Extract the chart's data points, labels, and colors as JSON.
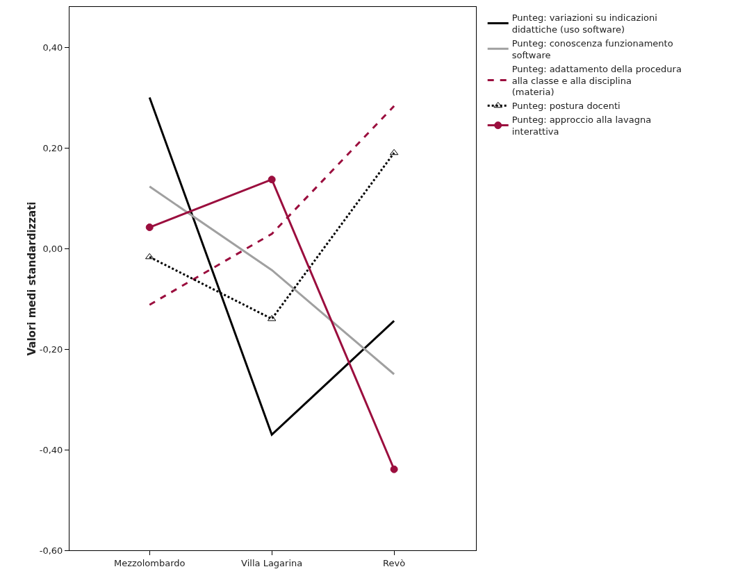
{
  "chart_data": {
    "type": "line",
    "ylabel": "Valori medi standardizzati",
    "categories": [
      "Mezzolombardo",
      "Villa Lagarina",
      "Revò"
    ],
    "ylim": [
      -0.6,
      0.48
    ],
    "yticks": [
      {
        "value": -0.6,
        "label": "-0,60"
      },
      {
        "value": -0.4,
        "label": "-0,40"
      },
      {
        "value": -0.2,
        "label": "-0,20"
      },
      {
        "value": 0,
        "label": "0,00"
      },
      {
        "value": 0.2,
        "label": "0,20"
      },
      {
        "value": 0.4,
        "label": "0,40"
      }
    ],
    "grid": false,
    "legend": "top right",
    "series": [
      {
        "name": "Punteg: variazioni su indicazioni didattiche (uso software)",
        "color": "#000000",
        "line_style": "solid",
        "marker": "none",
        "values": [
          0.3,
          -0.37,
          -0.144
        ]
      },
      {
        "name": "Punteg: conoscenza funzionamento software",
        "color": "#a0a0a0",
        "line_style": "solid",
        "marker": "none",
        "values": [
          0.123,
          -0.043,
          -0.25
        ]
      },
      {
        "name": "Punteg: adattamento della procedura alla classe e alla disciplina (materia)",
        "color": "#9b0e3e",
        "line_style": "dashed",
        "marker": "none",
        "values": [
          -0.112,
          0.029,
          0.283
        ]
      },
      {
        "name": "Punteg: postura docenti",
        "color": "#000000",
        "line_style": "dotted",
        "marker": "triangle",
        "values": [
          -0.017,
          -0.14,
          0.19
        ]
      },
      {
        "name": "Punteg: approccio alla lavagna interattiva",
        "color": "#9b0e3e",
        "line_style": "solid",
        "marker": "circle",
        "values": [
          0.042,
          0.137,
          -0.439
        ]
      }
    ]
  }
}
